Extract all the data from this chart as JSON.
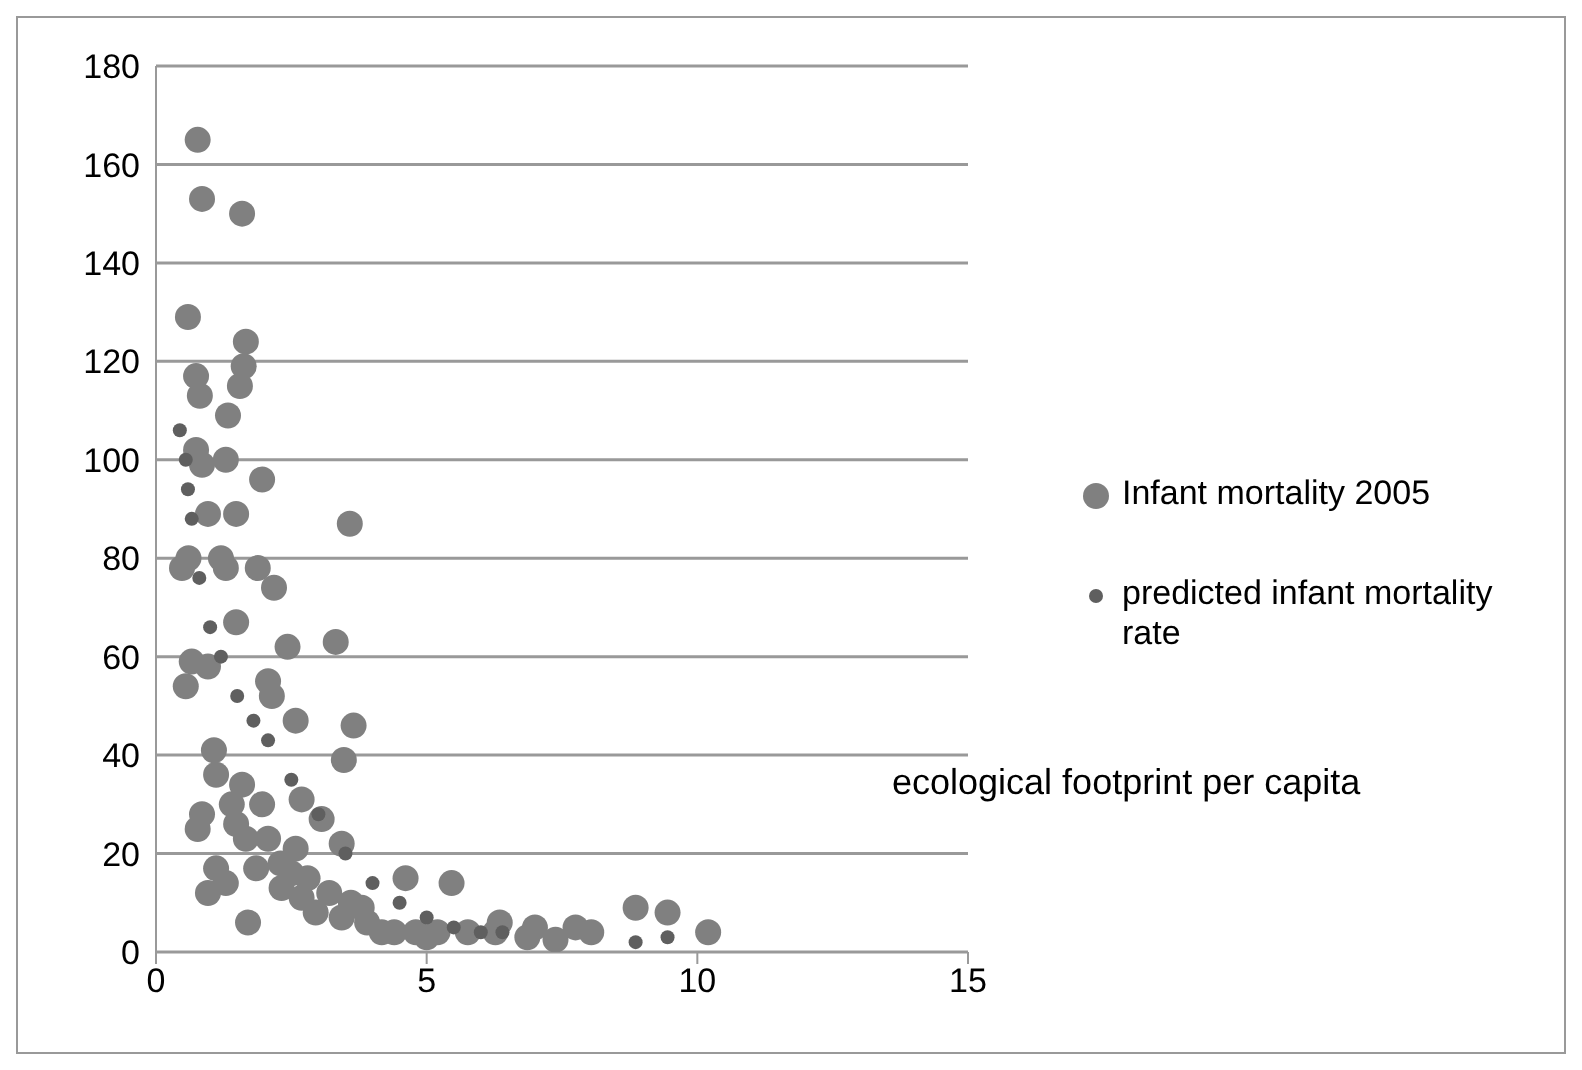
{
  "chart_data": {
    "type": "scatter",
    "xlabel": "ecological footprint per capita",
    "xlim": [
      0,
      15
    ],
    "xticks": [
      0,
      5,
      10,
      15
    ],
    "ylim": [
      0,
      180
    ],
    "yticks": [
      0,
      20,
      40,
      60,
      80,
      100,
      120,
      140,
      160,
      180
    ],
    "grid": "y",
    "legend": "right",
    "marker": "circle",
    "series": [
      {
        "name": "Infant mortality 2005",
        "color": "#808080",
        "x": [
          0.77,
          0.85,
          1.59,
          0.59,
          1.66,
          1.62,
          0.74,
          1.55,
          0.81,
          1.33,
          0.74,
          1.29,
          0.85,
          1.96,
          0.96,
          1.48,
          3.58,
          0.48,
          1.29,
          1.88,
          2.18,
          1.48,
          2.43,
          3.32,
          0.66,
          0.96,
          0.55,
          2.07,
          2.14,
          2.58,
          3.65,
          1.07,
          1.11,
          3.47,
          1.59,
          0.85,
          0.77,
          1.48,
          1.96,
          2.69,
          3.06,
          1.66,
          2.07,
          2.58,
          3.43,
          1.11,
          0.96,
          1.29,
          1.85,
          2.32,
          2.69,
          1.7,
          2.95,
          3.43,
          3.8,
          4.61,
          5.46,
          4.17,
          4.8,
          5.76,
          6.27,
          6.35,
          7.0,
          7.75,
          8.04,
          7.38,
          8.86,
          9.45,
          10.2,
          6.86,
          0.6,
          1.2,
          1.4,
          2.3,
          2.8,
          3.2,
          3.6,
          4.4,
          5.0,
          5.2,
          3.9,
          2.5
        ],
        "values": [
          165,
          153,
          150,
          129,
          124,
          119,
          117,
          115,
          113,
          109,
          102,
          100,
          99,
          96,
          89,
          89,
          87,
          78,
          78,
          78,
          74,
          67,
          62,
          63,
          59,
          58,
          54,
          55,
          52,
          47,
          46,
          41,
          36,
          39,
          34,
          28,
          25,
          26,
          30,
          31,
          27,
          23,
          23,
          21,
          22,
          17,
          12,
          14,
          17,
          13,
          11,
          6,
          8,
          7,
          9,
          15,
          14,
          4,
          4,
          4,
          4,
          6,
          5,
          5,
          4,
          2.5,
          9,
          8,
          4,
          3,
          80,
          80,
          30,
          18,
          15,
          12,
          10,
          4,
          3,
          4,
          6,
          16
        ]
      },
      {
        "name": "predicted infant mortality rate",
        "color": "#5f5f5f",
        "x": [
          0.44,
          0.55,
          0.59,
          0.66,
          0.8,
          1.0,
          1.2,
          1.5,
          1.8,
          2.07,
          2.5,
          3.0,
          3.5,
          4.0,
          4.5,
          5.0,
          5.5,
          6.0,
          6.4,
          8.86,
          9.45
        ],
        "values": [
          106,
          100,
          94,
          88,
          76,
          66,
          60,
          52,
          47,
          43,
          35,
          28,
          20,
          14,
          10,
          7,
          5,
          4,
          4,
          2,
          3
        ]
      }
    ]
  }
}
